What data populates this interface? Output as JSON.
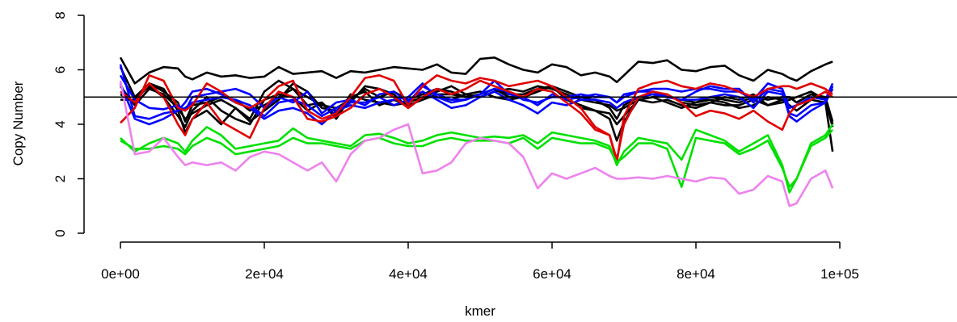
{
  "chart_data": {
    "type": "line",
    "title": "",
    "xlabel": "kmer",
    "ylabel": "Copy Number",
    "xlim": [
      0,
      100000
    ],
    "ylim": [
      0,
      8
    ],
    "x_ticks": [
      0,
      20000,
      40000,
      60000,
      80000,
      100000
    ],
    "x_tick_labels": [
      "0e+00",
      "2e+04",
      "4e+04",
      "6e+04",
      "8e+04",
      "1e+05"
    ],
    "y_ticks": [
      0,
      2,
      4,
      6,
      8
    ],
    "y_tick_labels": [
      "0",
      "2",
      "4",
      "6",
      "8"
    ],
    "reference_line": {
      "y": 5,
      "color": "#000000"
    },
    "legend": "none",
    "grid": false,
    "x": [
      0,
      2000,
      4000,
      6000,
      8000,
      9000,
      10000,
      12000,
      14000,
      16000,
      18000,
      20000,
      22000,
      24000,
      26000,
      28000,
      30000,
      32000,
      34000,
      36000,
      38000,
      40000,
      42000,
      44000,
      46000,
      48000,
      50000,
      52000,
      54000,
      56000,
      58000,
      60000,
      62000,
      64000,
      66000,
      68000,
      69000,
      70000,
      72000,
      74000,
      76000,
      78000,
      80000,
      82000,
      84000,
      86000,
      88000,
      90000,
      92000,
      93000,
      94000,
      96000,
      98000,
      99000
    ],
    "series": [
      {
        "color": "#000000",
        "values": [
          6.45,
          5.5,
          5.9,
          6.1,
          6.05,
          5.75,
          5.65,
          5.9,
          5.75,
          5.8,
          5.7,
          5.75,
          6.1,
          5.85,
          5.9,
          5.95,
          5.7,
          5.95,
          5.9,
          6.0,
          6.1,
          6.05,
          6.0,
          6.2,
          5.9,
          5.85,
          6.4,
          6.45,
          6.2,
          6.0,
          5.9,
          6.2,
          6.1,
          5.8,
          5.9,
          5.75,
          5.55,
          5.8,
          6.3,
          6.25,
          6.35,
          6.0,
          5.95,
          6.1,
          6.15,
          5.8,
          5.6,
          6.0,
          5.85,
          5.7,
          5.6,
          5.95,
          6.2,
          6.3
        ]
      },
      {
        "color": "#000000",
        "values": [
          6.1,
          5.0,
          5.5,
          5.3,
          4.5,
          3.7,
          4.2,
          4.5,
          4.0,
          4.6,
          4.2,
          5.2,
          5.6,
          5.3,
          4.7,
          4.8,
          4.2,
          5.0,
          5.2,
          4.7,
          4.9,
          4.7,
          4.9,
          5.1,
          5.1,
          5.0,
          5.1,
          5.3,
          5.0,
          5.0,
          5.2,
          5.4,
          4.9,
          4.7,
          4.5,
          4.2,
          3.4,
          4.1,
          4.9,
          5.0,
          5.1,
          4.8,
          4.7,
          4.8,
          5.0,
          4.9,
          5.1,
          4.7,
          4.9,
          5.0,
          4.8,
          5.1,
          4.9,
          4.0
        ]
      },
      {
        "color": "#000000",
        "values": [
          4.9,
          4.9,
          5.4,
          5.0,
          4.3,
          3.9,
          4.5,
          5.0,
          4.5,
          4.2,
          4.0,
          4.9,
          5.1,
          5.0,
          4.5,
          4.8,
          4.3,
          5.1,
          4.9,
          4.8,
          4.7,
          4.8,
          5.0,
          5.0,
          4.9,
          5.1,
          5.2,
          5.0,
          4.9,
          5.0,
          5.2,
          5.4,
          5.0,
          4.6,
          4.5,
          4.4,
          4.0,
          4.3,
          4.9,
          5.0,
          4.8,
          4.6,
          4.8,
          4.9,
          4.8,
          4.6,
          4.7,
          5.0,
          4.9,
          4.7,
          4.5,
          4.9,
          4.8,
          3.0
        ]
      },
      {
        "color": "#000000",
        "values": [
          5.1,
          4.8,
          5.5,
          5.2,
          4.8,
          4.1,
          4.7,
          4.8,
          5.0,
          4.9,
          4.5,
          4.7,
          5.0,
          5.3,
          5.0,
          4.7,
          4.6,
          4.9,
          5.3,
          5.0,
          5.2,
          4.9,
          5.1,
          5.3,
          5.2,
          5.0,
          5.1,
          5.3,
          5.1,
          5.1,
          5.3,
          5.4,
          5.2,
          5.0,
          4.9,
          4.6,
          4.2,
          4.7,
          5.0,
          5.1,
          5.0,
          4.9,
          4.8,
          5.0,
          4.9,
          4.8,
          5.0,
          4.9,
          5.0,
          5.0,
          4.8,
          5.1,
          5.0,
          4.1
        ]
      },
      {
        "color": "#000000",
        "values": [
          5.4,
          4.7,
          5.3,
          5.1,
          4.6,
          4.2,
          4.4,
          4.7,
          4.9,
          4.6,
          4.1,
          4.5,
          4.9,
          5.5,
          5.2,
          4.6,
          4.5,
          4.8,
          5.4,
          5.3,
          5.1,
          4.6,
          5.0,
          5.2,
          5.4,
          5.1,
          5.0,
          5.2,
          5.3,
          5.2,
          5.4,
          5.3,
          5.1,
          4.9,
          4.8,
          4.7,
          4.5,
          4.6,
          4.9,
          4.8,
          4.9,
          4.7,
          4.6,
          4.8,
          4.7,
          4.7,
          4.9,
          4.7,
          4.8,
          4.9,
          5.0,
          5.2,
          4.9,
          3.9
        ]
      },
      {
        "color": "#0000FF",
        "values": [
          5.8,
          4.9,
          4.6,
          4.55,
          4.7,
          4.5,
          5.0,
          5.1,
          5.2,
          5.3,
          5.1,
          4.6,
          5.0,
          4.8,
          5.2,
          4.4,
          4.8,
          4.9,
          4.7,
          5.1,
          5.2,
          4.8,
          5.4,
          5.1,
          4.9,
          4.9,
          5.1,
          5.6,
          5.1,
          5.0,
          4.7,
          5.1,
          4.9,
          5.0,
          5.1,
          5.0,
          4.8,
          5.0,
          5.2,
          5.3,
          5.3,
          5.2,
          5.3,
          5.3,
          5.2,
          5.2,
          4.9,
          5.5,
          5.3,
          4.6,
          4.7,
          5.0,
          4.9,
          5.5
        ]
      },
      {
        "color": "#0000FF",
        "values": [
          6.2,
          4.3,
          4.2,
          4.4,
          4.5,
          4.6,
          4.8,
          4.9,
          5.0,
          4.9,
          4.7,
          4.3,
          4.8,
          4.9,
          4.7,
          4.3,
          4.6,
          4.8,
          4.8,
          5.0,
          4.7,
          4.9,
          5.2,
          4.9,
          4.6,
          4.7,
          5.0,
          5.2,
          4.9,
          4.7,
          4.4,
          4.8,
          4.7,
          4.9,
          4.9,
          4.8,
          4.6,
          4.8,
          5.0,
          5.1,
          5.0,
          4.9,
          4.9,
          5.0,
          5.1,
          5.0,
          4.6,
          5.2,
          5.1,
          4.4,
          4.3,
          4.7,
          4.8,
          5.3
        ]
      },
      {
        "color": "#0000FF",
        "values": [
          5.5,
          4.2,
          4.0,
          4.2,
          4.5,
          4.8,
          5.2,
          5.3,
          5.1,
          4.8,
          4.6,
          4.2,
          4.5,
          4.6,
          4.4,
          4.0,
          4.5,
          4.7,
          4.6,
          4.8,
          4.9,
          5.0,
          5.5,
          5.0,
          4.8,
          4.9,
          5.1,
          5.3,
          5.2,
          4.9,
          4.8,
          5.0,
          5.0,
          5.1,
          5.0,
          5.0,
          4.8,
          5.1,
          5.2,
          5.2,
          5.0,
          4.9,
          5.2,
          5.4,
          5.3,
          5.3,
          4.8,
          5.3,
          5.2,
          4.3,
          4.1,
          4.5,
          4.8,
          5.4
        ]
      },
      {
        "color": "#E00000",
        "values": [
          4.05,
          4.6,
          5.8,
          5.6,
          4.6,
          4.5,
          4.7,
          5.5,
          5.2,
          4.8,
          4.6,
          4.9,
          5.4,
          5.6,
          4.5,
          4.2,
          4.4,
          5.0,
          5.7,
          5.8,
          5.6,
          4.7,
          5.4,
          5.8,
          5.6,
          5.5,
          5.7,
          5.6,
          5.4,
          5.5,
          5.6,
          5.4,
          5.0,
          4.6,
          3.9,
          3.6,
          2.6,
          4.3,
          5.3,
          5.5,
          5.6,
          5.4,
          5.3,
          5.5,
          5.4,
          5.2,
          5.0,
          5.3,
          5.4,
          5.4,
          5.3,
          5.5,
          5.3,
          5.1
        ]
      },
      {
        "color": "#E00000",
        "values": [
          5.2,
          4.8,
          5.5,
          5.0,
          4.0,
          3.6,
          4.2,
          4.8,
          4.1,
          3.8,
          3.5,
          4.6,
          5.2,
          5.0,
          4.2,
          4.1,
          4.3,
          4.6,
          5.1,
          5.3,
          5.0,
          4.6,
          5.0,
          5.3,
          5.1,
          5.3,
          5.6,
          5.4,
          5.2,
          5.0,
          5.3,
          5.2,
          4.8,
          4.4,
          3.8,
          3.6,
          2.7,
          4.0,
          5.0,
          5.2,
          5.1,
          4.8,
          4.3,
          4.5,
          4.4,
          4.2,
          4.5,
          4.1,
          3.8,
          4.4,
          4.7,
          4.9,
          5.2,
          5.0
        ]
      },
      {
        "color": "#00E000",
        "values": [
          3.5,
          3.0,
          3.3,
          3.5,
          3.3,
          3.0,
          3.4,
          3.9,
          3.6,
          3.1,
          3.2,
          3.3,
          3.4,
          3.85,
          3.5,
          3.4,
          3.3,
          3.2,
          3.6,
          3.65,
          3.5,
          3.3,
          3.4,
          3.6,
          3.7,
          3.6,
          3.5,
          3.55,
          3.5,
          3.6,
          3.3,
          3.7,
          3.6,
          3.5,
          3.4,
          3.2,
          2.5,
          3.0,
          3.5,
          3.4,
          3.3,
          2.7,
          3.8,
          3.6,
          3.4,
          3.0,
          3.3,
          3.6,
          2.5,
          1.5,
          2.0,
          3.3,
          3.6,
          4.0
        ]
      },
      {
        "color": "#00E000",
        "values": [
          3.4,
          3.1,
          3.1,
          3.2,
          3.1,
          2.9,
          3.2,
          3.5,
          3.3,
          2.9,
          3.0,
          3.1,
          3.2,
          3.5,
          3.3,
          3.3,
          3.2,
          3.1,
          3.4,
          3.5,
          3.3,
          3.2,
          3.2,
          3.4,
          3.5,
          3.4,
          3.4,
          3.4,
          3.3,
          3.5,
          3.1,
          3.5,
          3.4,
          3.3,
          3.3,
          3.1,
          2.6,
          2.8,
          3.3,
          3.3,
          3.1,
          1.7,
          3.5,
          3.4,
          3.3,
          2.9,
          3.1,
          3.4,
          2.4,
          1.7,
          2.0,
          3.2,
          3.5,
          3.8
        ]
      },
      {
        "color": "#EE82EE",
        "values": [
          5.6,
          2.9,
          3.0,
          3.5,
          2.8,
          2.5,
          2.6,
          2.5,
          2.6,
          2.3,
          2.8,
          3.0,
          2.9,
          2.6,
          2.3,
          2.6,
          1.9,
          2.9,
          3.4,
          3.5,
          3.8,
          4.0,
          2.2,
          2.3,
          2.6,
          3.3,
          3.5,
          3.4,
          3.3,
          2.8,
          1.65,
          2.2,
          2.0,
          2.2,
          2.4,
          2.1,
          2.0,
          2.0,
          2.05,
          2.0,
          2.1,
          2.0,
          1.9,
          2.05,
          2.0,
          1.45,
          1.6,
          2.1,
          1.9,
          1.0,
          1.1,
          2.0,
          2.3,
          1.65
        ]
      }
    ]
  }
}
